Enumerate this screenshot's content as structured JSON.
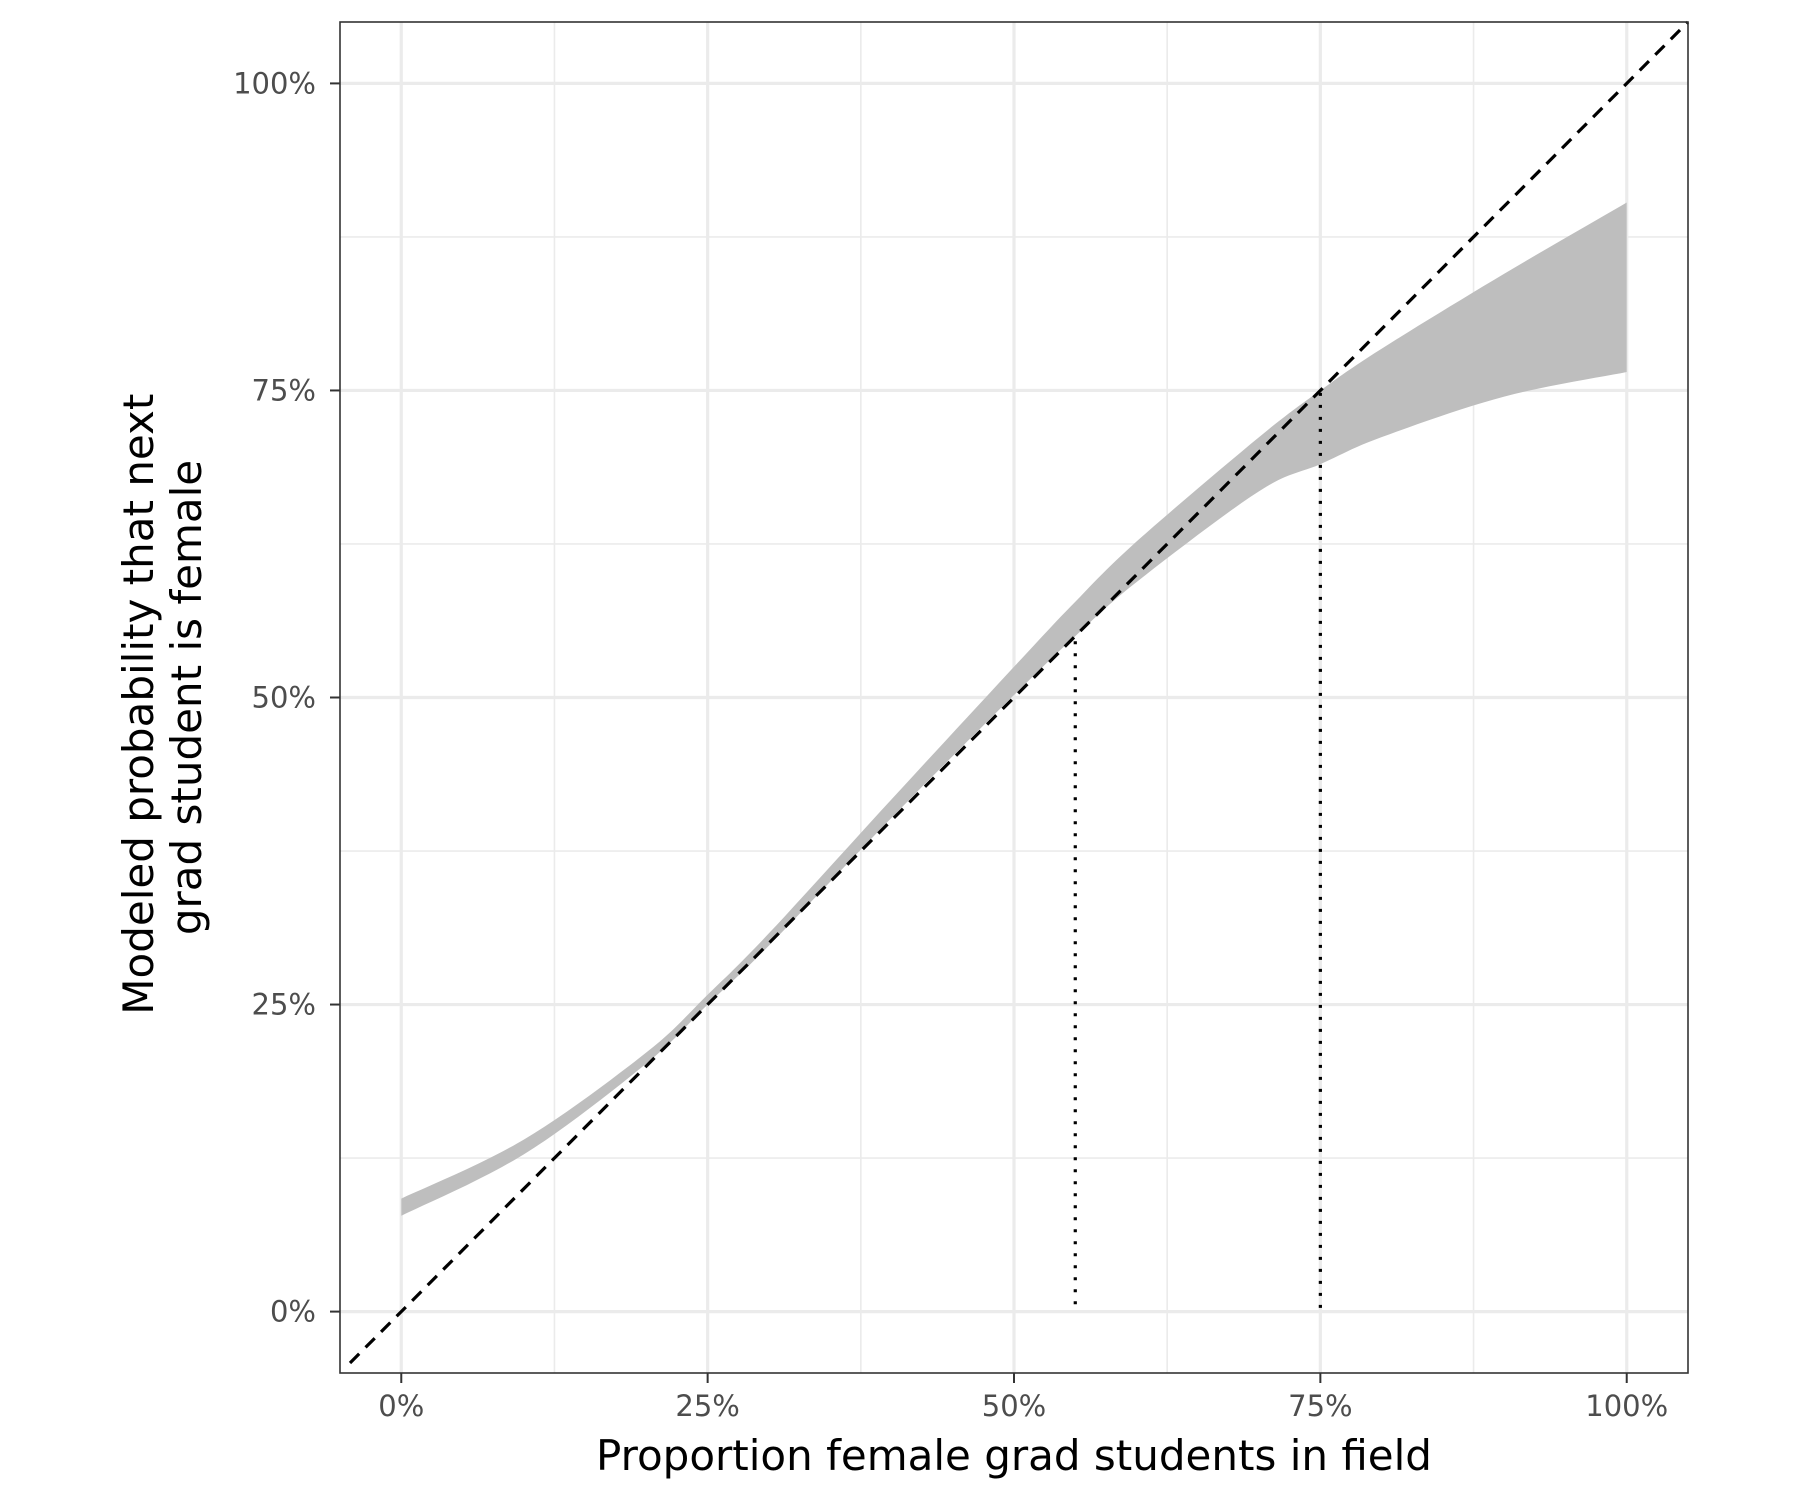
{
  "chart_data": {
    "type": "area",
    "title": "",
    "xlabel": "Proportion female grad students in field",
    "ylabel_lines": [
      "Modeled probability that next",
      "grad student is female"
    ],
    "xlim": [
      -0.05,
      1.05
    ],
    "ylim": [
      -0.05,
      1.05
    ],
    "x_ticks": [
      {
        "value": 0,
        "label": "0%"
      },
      {
        "value": 0.25,
        "label": "25%"
      },
      {
        "value": 0.5,
        "label": "50%"
      },
      {
        "value": 0.75,
        "label": "75%"
      },
      {
        "value": 1,
        "label": "100%"
      }
    ],
    "y_ticks": [
      {
        "value": 0,
        "label": "0%"
      },
      {
        "value": 0.25,
        "label": "25%"
      },
      {
        "value": 0.5,
        "label": "50%"
      },
      {
        "value": 0.75,
        "label": "75%"
      },
      {
        "value": 1,
        "label": "100%"
      }
    ],
    "minor_breaks": [
      0.125,
      0.375,
      0.625,
      0.875
    ],
    "grid": true,
    "ribbon": {
      "x": [
        0.0,
        0.1,
        0.2,
        0.25,
        0.3,
        0.4,
        0.5,
        0.55,
        0.6,
        0.7,
        0.75,
        0.8,
        0.9,
        1.0
      ],
      "lower": [
        0.078,
        0.128,
        0.202,
        0.25,
        0.298,
        0.402,
        0.502,
        0.55,
        0.594,
        0.668,
        0.69,
        0.712,
        0.745,
        0.765
      ],
      "upper": [
        0.092,
        0.14,
        0.211,
        0.258,
        0.308,
        0.417,
        0.525,
        0.578,
        0.627,
        0.712,
        0.75,
        0.784,
        0.845,
        0.903
      ]
    },
    "reference_line": {
      "from": [
        -0.05,
        -0.05
      ],
      "to": [
        1.05,
        1.05
      ],
      "style": "dashed"
    },
    "vertical_lines": [
      {
        "x": 0.55,
        "y_from": 0.006,
        "y_to": 0.55,
        "style": "dotted"
      },
      {
        "x": 0.75,
        "y_from": 0.003,
        "y_to": 0.75,
        "style": "dotted"
      }
    ],
    "colors": {
      "ribbon": "#bebebe",
      "grid": "#ebebeb",
      "panel_border": "#333333",
      "lines": "#000000"
    }
  }
}
